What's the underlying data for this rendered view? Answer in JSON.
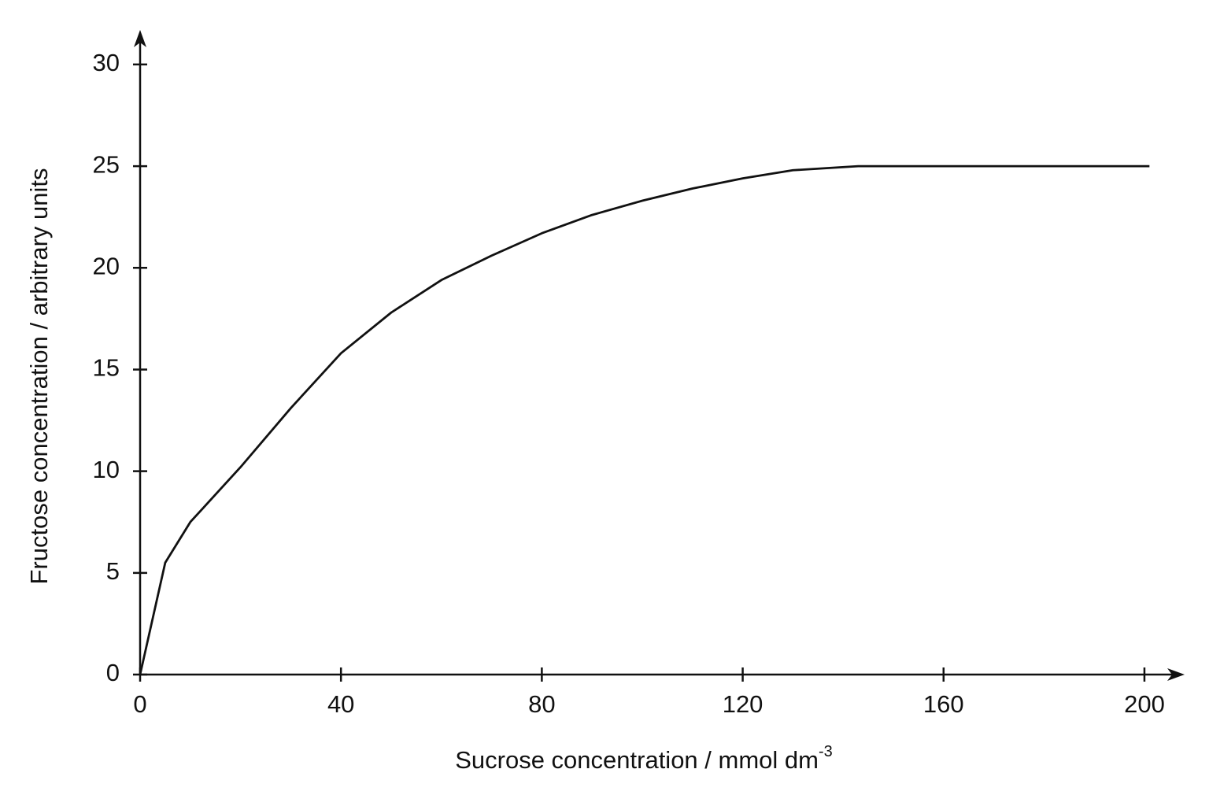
{
  "chart_data": {
    "type": "line",
    "x_label": "Sucrose concentration / mmol dm",
    "x_label_exponent": "-3",
    "y_label": "Fructose concentration / arbitrary units",
    "x": [
      0,
      5,
      10,
      20,
      30,
      40,
      50,
      60,
      70,
      80,
      90,
      100,
      110,
      120,
      130,
      143,
      160,
      180,
      201
    ],
    "series": [
      {
        "color": "#111111",
        "values": [
          0,
          5.5,
          7.5,
          10.2,
          13.1,
          15.8,
          17.8,
          19.4,
          20.6,
          21.7,
          22.6,
          23.3,
          23.9,
          24.4,
          24.8,
          25,
          25,
          25,
          25
        ]
      }
    ],
    "xlim": [
      0,
      208
    ],
    "xticks": [
      0,
      40,
      80,
      120,
      160,
      200
    ],
    "ylim": [
      0,
      31.7
    ],
    "yticks": [
      0,
      5,
      10,
      15,
      20,
      25,
      30
    ],
    "grid": false
  }
}
